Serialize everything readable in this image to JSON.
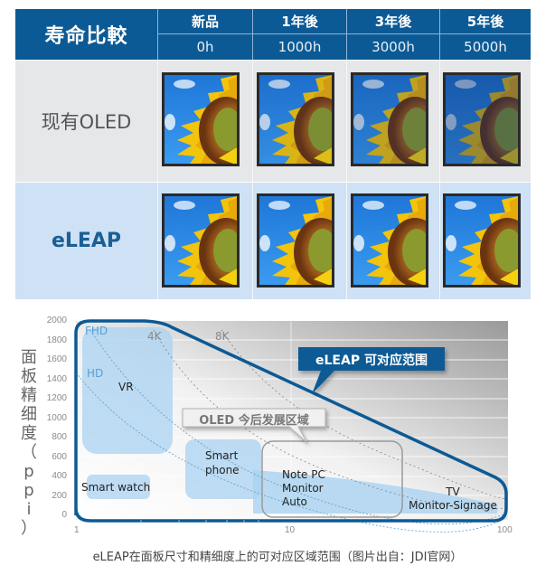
{
  "table": {
    "title": "寿命比較",
    "columns": [
      {
        "label": "新品",
        "hours": "0h"
      },
      {
        "label": "1年後",
        "hours": "1000h"
      },
      {
        "label": "3年後",
        "hours": "3000h"
      },
      {
        "label": "5年後",
        "hours": "5000h"
      }
    ],
    "rows": [
      {
        "label": "现有OLED",
        "image_brightness": [
          1.0,
          0.92,
          0.8,
          0.62
        ]
      },
      {
        "label": "eLEAP",
        "image_brightness": [
          1.0,
          1.0,
          1.0,
          1.0
        ]
      }
    ],
    "colors": {
      "header_bg": "#0c5a95",
      "row_oled_bg": "#e6e7e9",
      "row_eleap_bg": "#cfe1f4",
      "eleap_text": "#1a5f95"
    }
  },
  "chart_data": {
    "type": "area",
    "title": "",
    "xlabel": "",
    "ylabel": "面板精细度（ppi）",
    "xscale": "log",
    "xlim": [
      1,
      100
    ],
    "ylim": [
      0,
      2000
    ],
    "x_ticks": [
      "1",
      "10",
      "100"
    ],
    "y_ticks": [
      "0",
      "200",
      "400",
      "600",
      "800",
      "1000",
      "1200",
      "1400",
      "1600",
      "1800",
      "2000"
    ],
    "resolution_curves": [
      {
        "name": "HD",
        "label_pos": [
          1.1,
          1450
        ]
      },
      {
        "name": "FHD",
        "label_pos": [
          1.1,
          1900
        ]
      },
      {
        "name": "4K",
        "label_pos": [
          3.4,
          1830
        ]
      },
      {
        "name": "8K",
        "label_pos": [
          6.8,
          1830
        ]
      }
    ],
    "regions": [
      {
        "name": "VR",
        "x_range": [
          1.05,
          4.2
        ],
        "ppi_range": [
          650,
          1950
        ]
      },
      {
        "name": "Smart watch",
        "x_range": [
          1.1,
          2.7
        ],
        "ppi_range": [
          200,
          420
        ]
      },
      {
        "name": "Smart phone",
        "x_range": [
          4.6,
          8.5
        ],
        "ppi_range": [
          200,
          800
        ]
      },
      {
        "name": "Note PC / Monitor / Auto",
        "x_range": [
          7.5,
          40
        ],
        "ppi_range": [
          80,
          500
        ]
      },
      {
        "name": "TV / Monitor-Signage",
        "x_range": [
          30,
          100
        ],
        "ppi_range": [
          50,
          180
        ]
      }
    ],
    "annotations": [
      {
        "text": "eLEAP 可对应范围",
        "style": "callout-blue"
      },
      {
        "text": "OLED 今后发展区域",
        "style": "callout-gray"
      }
    ],
    "eleap_boundary": [
      [
        1,
        2000
      ],
      [
        3.2,
        1950
      ],
      [
        25,
        1000
      ],
      [
        90,
        250
      ],
      [
        100,
        0
      ]
    ]
  },
  "chart": {
    "y_ticks": [
      "2000",
      "1800",
      "1600",
      "1400",
      "1200",
      "1000",
      "800",
      "600",
      "400",
      "200",
      "0"
    ],
    "x_ticks": [
      "1",
      "10",
      "100"
    ],
    "ylabel": "面板精细度（ppi）",
    "curve_labels": {
      "fhd": "FHD",
      "hd": "HD",
      "k4": "4K",
      "k8": "8K"
    },
    "regions": {
      "vr": "VR",
      "smartwatch": "Smart watch",
      "smartphone_1": "Smart",
      "smartphone_2": "phone",
      "notepc_1": "Note PC",
      "notepc_2": "Monitor",
      "notepc_3": "Auto",
      "tv_1": "TV",
      "tv_2": "Monitor-Signage"
    },
    "callout_eleap": "eLEAP 可对应范围",
    "callout_oled": "OLED 今后发展区域",
    "colors": {
      "boundary": "#0c5a95",
      "region": "#a9d2f0",
      "curve": "#5a9fd4"
    }
  },
  "caption": "eLEAP在面板尺寸和精细度上的可对应区域范围（图片出自：JDI官网）"
}
